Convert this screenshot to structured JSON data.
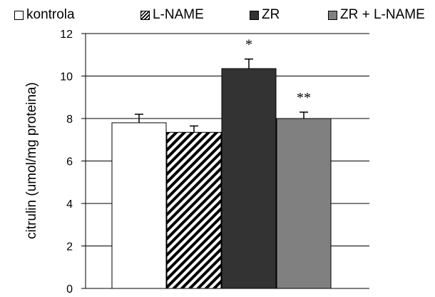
{
  "chart_data": {
    "type": "bar",
    "title": "",
    "xlabel": "",
    "ylabel": "citrulin (umol/mg proteina)",
    "ylim": [
      0,
      12
    ],
    "yticks": [
      "0",
      "2",
      "4",
      "6",
      "8",
      "10",
      "12"
    ],
    "grid": true,
    "legend_position": "top",
    "series": [
      {
        "name": "kontrola",
        "value": 7.8,
        "error": 0.4,
        "fill": "#ffffff",
        "pattern": "none",
        "annotation": ""
      },
      {
        "name": "L-NAME",
        "value": 7.35,
        "error": 0.3,
        "fill": "#ffffff",
        "pattern": "diagonal-stripes",
        "annotation": ""
      },
      {
        "name": "ZR",
        "value": 10.35,
        "error": 0.45,
        "fill": "#333333",
        "pattern": "none",
        "annotation": "*"
      },
      {
        "name": "ZR + L-NAME",
        "value": 8.0,
        "error": 0.3,
        "fill": "#808080",
        "pattern": "none",
        "annotation": "**"
      }
    ]
  }
}
